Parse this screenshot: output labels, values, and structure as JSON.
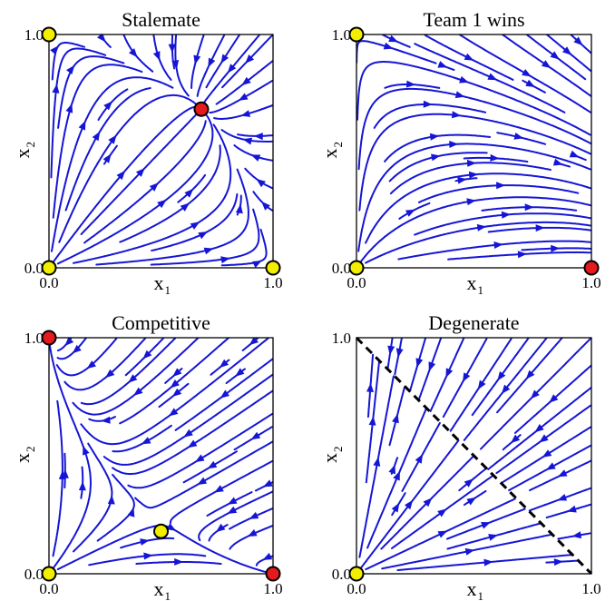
{
  "colors": {
    "stream": "#1515d6",
    "stable": "#e41a1c",
    "unstable": "#f2ee00",
    "frame": "#000000"
  },
  "chart_data": [
    {
      "type": "streamplot",
      "title": "Stalemate",
      "xlabel": "x",
      "xlabel_sub": "1",
      "ylabel": "x",
      "ylabel_sub": "2",
      "xlim": [
        0,
        1
      ],
      "ylim": [
        0,
        1
      ],
      "xtick_labels": [
        "0.0",
        "1.0"
      ],
      "ytick_labels": [
        "0.0",
        "1.0"
      ],
      "fixed_points": [
        {
          "x": 0.0,
          "y": 0.0,
          "stable": false
        },
        {
          "x": 0.0,
          "y": 1.0,
          "stable": false
        },
        {
          "x": 1.0,
          "y": 0.0,
          "stable": false
        },
        {
          "x": 0.68,
          "y": 0.68,
          "stable": true
        }
      ]
    },
    {
      "type": "streamplot",
      "title": "Team 1 wins",
      "xlabel": "x",
      "xlabel_sub": "1",
      "ylabel": "x",
      "ylabel_sub": "2",
      "xlim": [
        0,
        1
      ],
      "ylim": [
        0,
        1
      ],
      "xtick_labels": [
        "0.0",
        "1.0"
      ],
      "ytick_labels": [
        "0.0",
        "1.0"
      ],
      "fixed_points": [
        {
          "x": 0.0,
          "y": 0.0,
          "stable": false
        },
        {
          "x": 0.0,
          "y": 1.0,
          "stable": false
        },
        {
          "x": 1.0,
          "y": 0.0,
          "stable": true
        }
      ]
    },
    {
      "type": "streamplot",
      "title": "Competitive",
      "xlabel": "x",
      "xlabel_sub": "1",
      "ylabel": "x",
      "ylabel_sub": "2",
      "xlim": [
        0,
        1
      ],
      "ylim": [
        0,
        1
      ],
      "xtick_labels": [
        "0.0",
        "1.0"
      ],
      "ytick_labels": [
        "0.0",
        "1.0"
      ],
      "fixed_points": [
        {
          "x": 0.0,
          "y": 0.0,
          "stable": false
        },
        {
          "x": 0.0,
          "y": 1.0,
          "stable": true
        },
        {
          "x": 1.0,
          "y": 0.0,
          "stable": true
        },
        {
          "x": 0.5,
          "y": 0.18,
          "stable": false
        }
      ]
    },
    {
      "type": "streamplot",
      "title": "Degenerate",
      "xlabel": "x",
      "xlabel_sub": "1",
      "ylabel": "x",
      "ylabel_sub": "2",
      "xlim": [
        0,
        1
      ],
      "ylim": [
        0,
        1
      ],
      "xtick_labels": [
        "0.0",
        "1.0"
      ],
      "ytick_labels": [
        "0.0",
        "1.0"
      ],
      "fixed_line": {
        "from": [
          0,
          1
        ],
        "to": [
          1,
          0
        ],
        "style": "dashed"
      },
      "fixed_points": [
        {
          "x": 0.0,
          "y": 0.0,
          "stable": false
        }
      ]
    }
  ]
}
